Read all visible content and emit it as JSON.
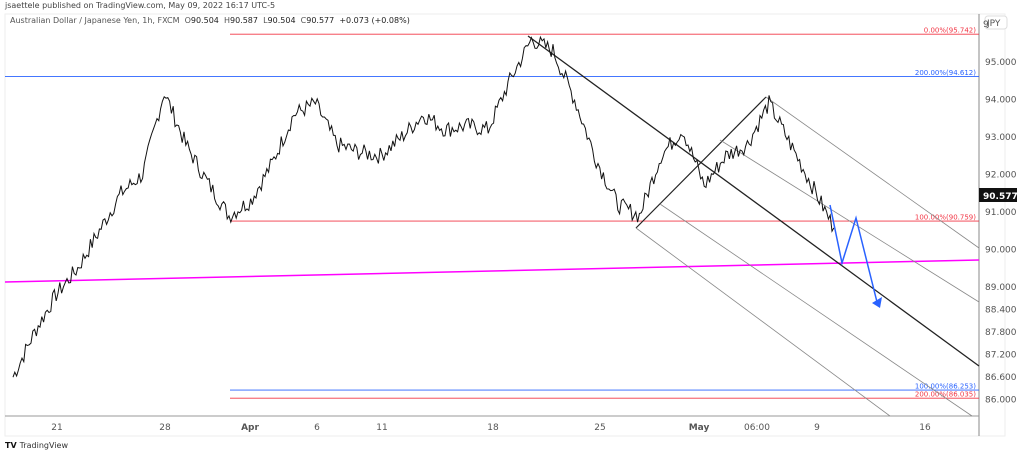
{
  "header": {
    "published": "jsaettele published on TradingView.com, May 09, 2022 16:17 UTC-5",
    "symbol": "Australian Dollar / Japanese Yen, 1h, FXCM",
    "open_label": "O",
    "open": "90.504",
    "high_label": "H",
    "high": "90.587",
    "low_label": "L",
    "low": "90.504",
    "close_label": "C",
    "close": "90.577",
    "change": "+0.073 (+0.08%)"
  },
  "price_axis": {
    "currency_badge": "JPY",
    "top_partial": "9",
    "ticks": [
      "95.000",
      "94.000",
      "93.000",
      "92.000",
      "91.000",
      "90.000",
      "89.000",
      "88.400",
      "87.800",
      "87.200",
      "86.600",
      "86.000"
    ],
    "last_price": "90.577"
  },
  "time_axis": {
    "ticks": [
      {
        "label": "21",
        "bold": false
      },
      {
        "label": "28",
        "bold": false
      },
      {
        "label": "Apr",
        "bold": true
      },
      {
        "label": "6",
        "bold": false
      },
      {
        "label": "11",
        "bold": false
      },
      {
        "label": "18",
        "bold": false
      },
      {
        "label": "25",
        "bold": false
      },
      {
        "label": "May",
        "bold": true
      },
      {
        "label": "06:00",
        "bold": false
      },
      {
        "label": "9",
        "bold": false
      },
      {
        "label": "16",
        "bold": false
      }
    ]
  },
  "levels": [
    {
      "label": "0.00%(95.742)",
      "price": 95.742,
      "color": "#f23645"
    },
    {
      "label": "200.00%(94.612)",
      "price": 94.612,
      "color": "#2962ff"
    },
    {
      "label": "100.00%(90.759)",
      "price": 90.759,
      "color": "#f23645"
    },
    {
      "label": "100.00%(86.253)",
      "price": 86.253,
      "color": "#2962ff"
    },
    {
      "label": "200.00%(86.035)",
      "price": 86.035,
      "color": "#f23645"
    }
  ],
  "colors": {
    "trendline": "#ff00ff",
    "projection": "#2962ff",
    "candles": "#000000",
    "pitchfork": "#888888"
  },
  "chart_data": {
    "type": "line",
    "title": "Australian Dollar / Japanese Yen, 1h, FXCM",
    "series": [
      {
        "values": [
          [
            "Mar 17",
            86.6
          ],
          [
            "Mar 18",
            87.8
          ],
          [
            "Mar 21",
            88.8
          ],
          [
            "Mar 22",
            89.5
          ],
          [
            "Mar 23",
            90.5
          ],
          [
            "Mar 24",
            91.5
          ],
          [
            "Mar 25",
            92.0
          ],
          [
            "Mar 28",
            94.2
          ],
          [
            "Mar 29",
            92.8
          ],
          [
            "Mar 30",
            91.8
          ],
          [
            "Mar 31",
            90.9
          ],
          [
            "Apr 1",
            91.3
          ],
          [
            "Apr 4",
            92.3
          ],
          [
            "Apr 5",
            93.6
          ],
          [
            "Apr 6",
            93.9
          ],
          [
            "Apr 7",
            92.8
          ],
          [
            "Apr 8",
            92.6
          ],
          [
            "Apr 11",
            92.5
          ],
          [
            "Apr 12",
            93.0
          ],
          [
            "Apr 13",
            93.6
          ],
          [
            "Apr 14",
            93.2
          ],
          [
            "Apr 15",
            93.3
          ],
          [
            "Apr 18",
            93.2
          ],
          [
            "Apr 19",
            94.5
          ],
          [
            "Apr 20",
            95.6
          ],
          [
            "Apr 21",
            95.3
          ],
          [
            "Apr 22",
            94.0
          ],
          [
            "Apr 25",
            92.4
          ],
          [
            "Apr 26",
            91.2
          ],
          [
            "Apr 27",
            90.9
          ],
          [
            "Apr 28",
            92.5
          ],
          [
            "Apr 29",
            93.2
          ],
          [
            "May 2",
            91.7
          ],
          [
            "May 3",
            92.5
          ],
          [
            "May 4",
            92.8
          ],
          [
            "May 5",
            93.9
          ],
          [
            "May 6",
            92.8
          ],
          [
            "May 9",
            91.7
          ],
          [
            "May 10",
            90.577
          ]
        ]
      }
    ],
    "ylim": [
      85.5,
      96.2
    ]
  }
}
